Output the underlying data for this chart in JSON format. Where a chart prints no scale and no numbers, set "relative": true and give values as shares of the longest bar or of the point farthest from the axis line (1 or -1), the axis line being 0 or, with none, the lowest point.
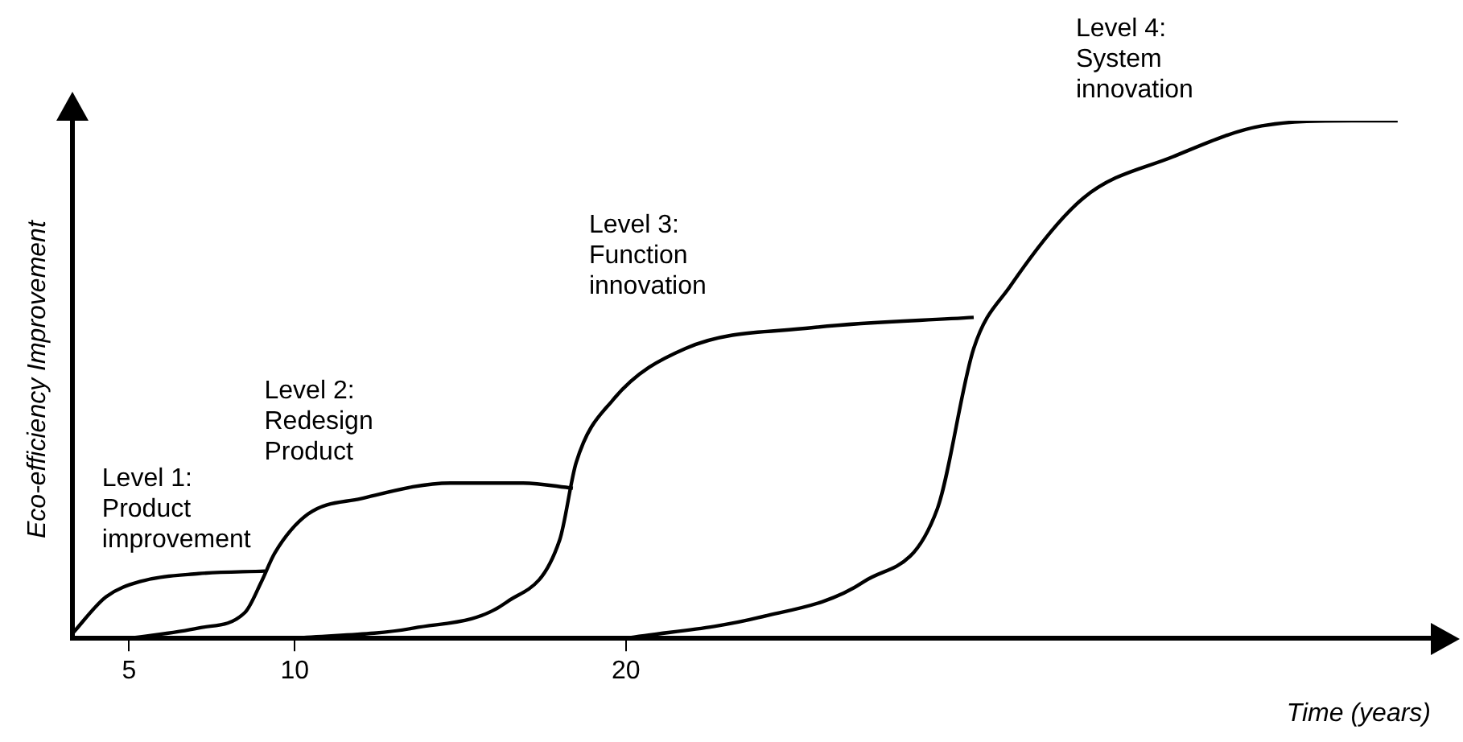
{
  "chart_data": {
    "type": "line",
    "relative": true,
    "xlabel": "Time (years)",
    "ylabel": "Eco-efficiency Improvement",
    "xlim": [
      3.3,
      44.3
    ],
    "xticks": [
      5,
      10,
      20
    ],
    "grid": false,
    "legend": false,
    "marker": "none",
    "line_style": "solid",
    "series": [
      {
        "name": "Level 1: Product improvement",
        "color": "#000000",
        "x": [
          3.3,
          4.3,
          5.35,
          7.1,
          9.1
        ],
        "values": [
          0.01,
          0.08,
          0.11,
          0.125,
          0.13
        ]
      },
      {
        "name": "Level 2: Redesign Product",
        "color": "#000000",
        "x": [
          5,
          7.1,
          8.5,
          9.0,
          9.4,
          10.4,
          12.0,
          14.7,
          16.9,
          18.4
        ],
        "values": [
          0,
          0.02,
          0.05,
          0.11,
          0.165,
          0.24,
          0.27,
          0.3,
          0.3,
          0.29
        ]
      },
      {
        "name": "Level 3: Function innovation",
        "color": "#000000",
        "x": [
          10,
          13.6,
          16.4,
          18.0,
          18.5,
          19.6,
          21.8,
          25.6,
          30.5
        ],
        "values": [
          0,
          0.02,
          0.07,
          0.19,
          0.34,
          0.46,
          0.56,
          0.6,
          0.62
        ]
      },
      {
        "name": "Level 4: System innovation",
        "color": "#000000",
        "x": [
          20,
          24.0,
          27.2,
          29.4,
          30.5,
          31.6,
          33.8,
          36.5,
          39.2,
          41.9,
          43.3
        ],
        "values": [
          0,
          0.04,
          0.11,
          0.25,
          0.56,
          0.68,
          0.85,
          0.93,
          0.99,
          1,
          1
        ]
      }
    ]
  }
}
